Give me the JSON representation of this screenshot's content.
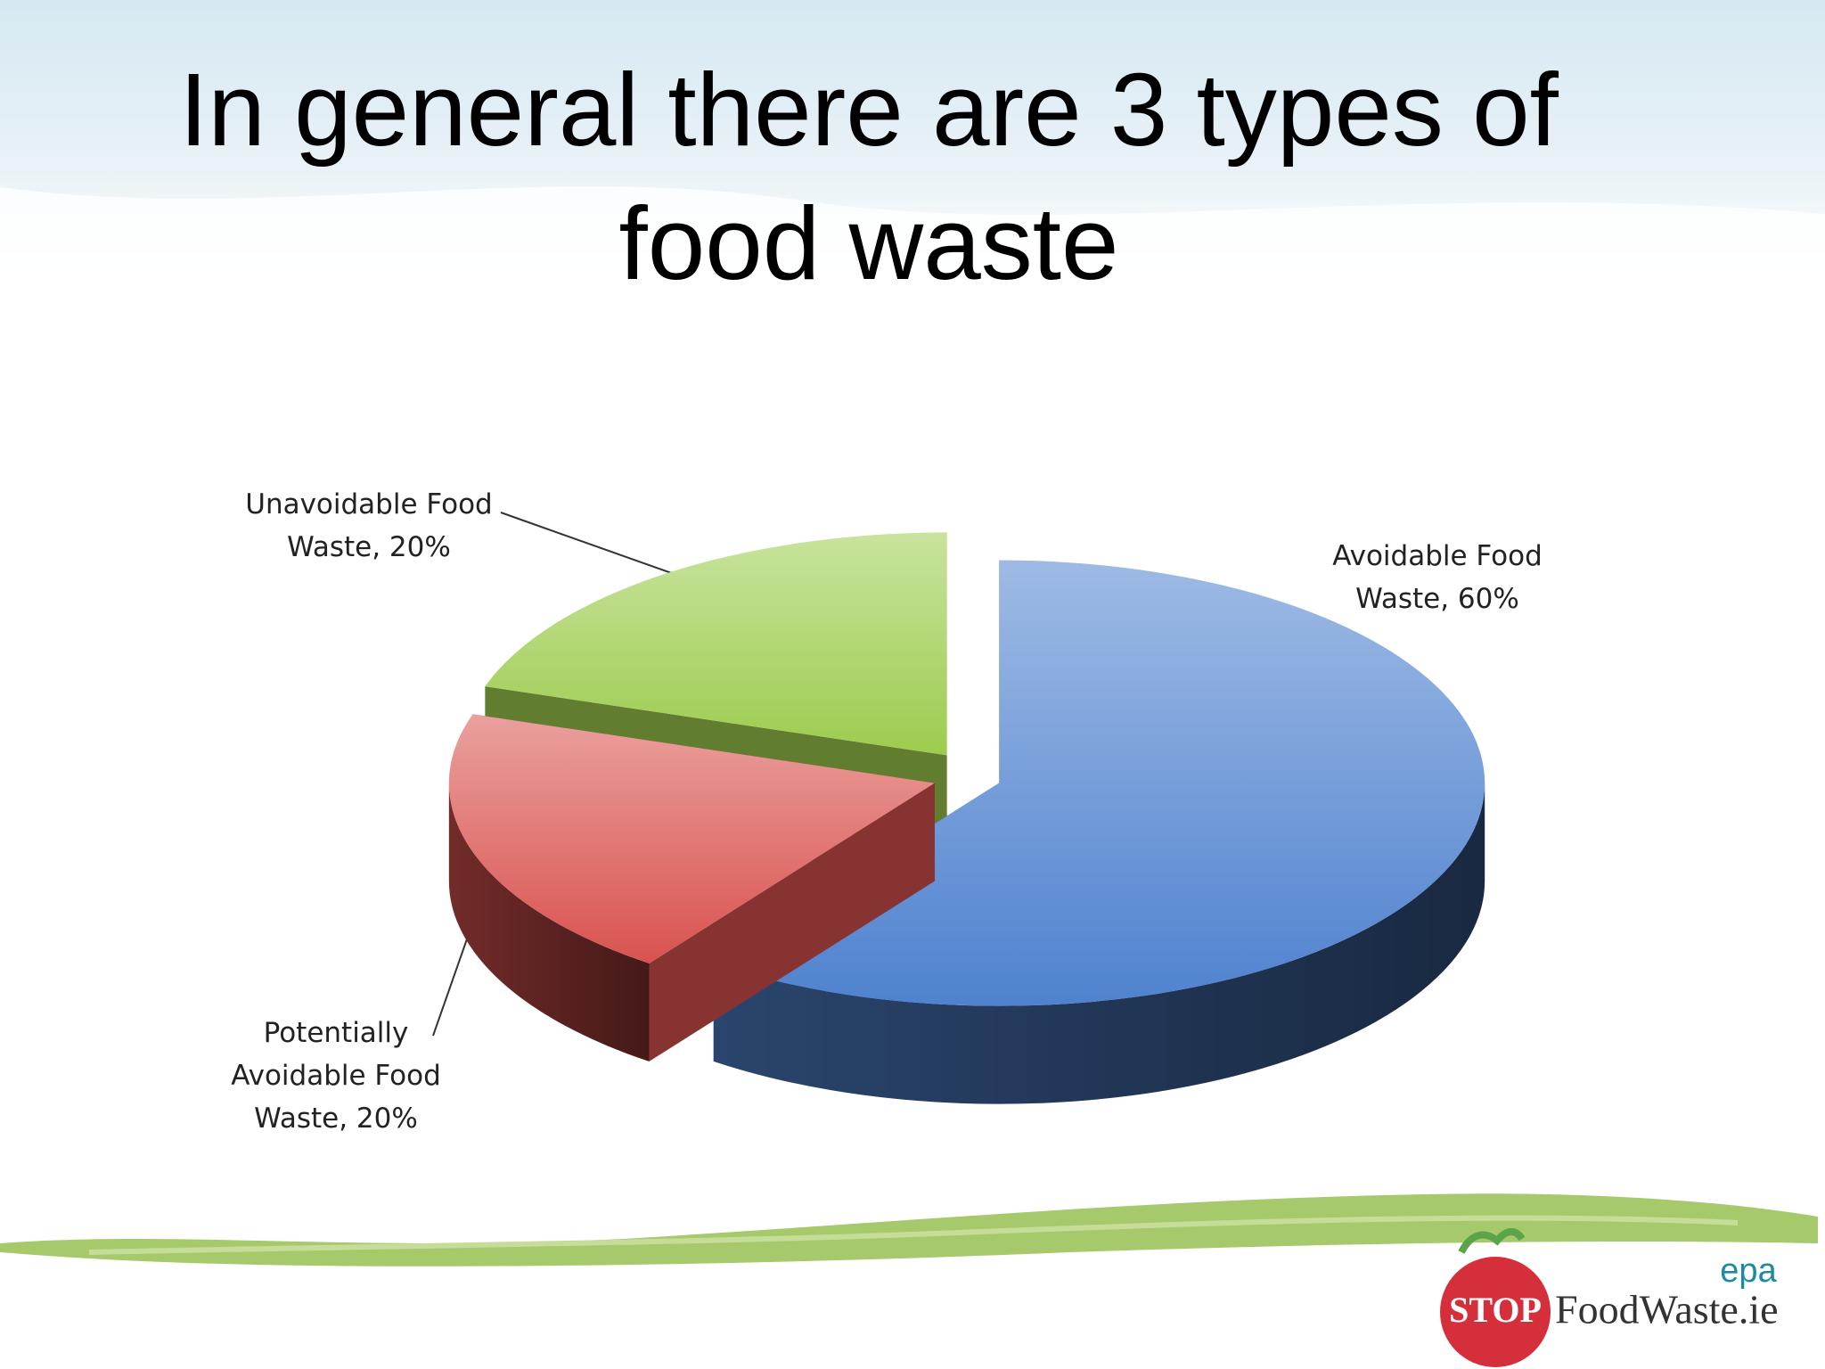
{
  "chart_data": {
    "type": "pie",
    "title": "In general there are 3 types of food waste",
    "values": [
      60,
      20,
      20
    ],
    "value_labels": [
      "Avoidable Food Waste, 60%",
      "Potentially Avoidable Food Waste, 20%",
      "Unavoidable Food Waste, 20%"
    ],
    "colors": [
      "#4f82cf",
      "#d9534f",
      "#9ccc4e"
    ]
  },
  "logo": {
    "stop": "STOP",
    "site": "FoodWaste.ie",
    "agency": "epa"
  }
}
